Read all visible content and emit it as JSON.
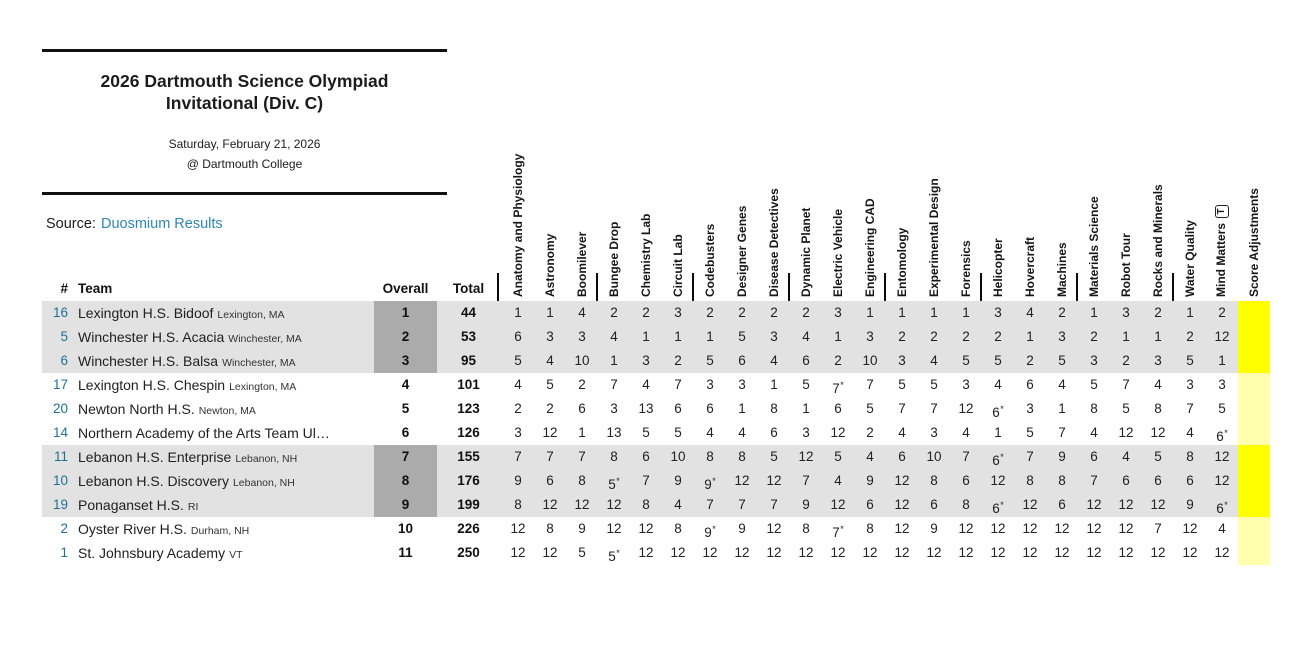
{
  "header": {
    "title_line1": "2026 Dartmouth Science Olympiad",
    "title_line2": "Invitational (Div. C)",
    "date": "Saturday, February 21, 2026",
    "venue": "@ Dartmouth College",
    "source_label": "Source:",
    "source_link": "Duosmium Results"
  },
  "colors": {
    "link_blue": "#2e86b5",
    "team_number_blue": "#1f7095",
    "band_gray": "#e2e2e2",
    "overall_dark_gray": "#ababab",
    "score_adjust_yellow_bright": "#ffff00",
    "score_adjust_yellow_pale": "#ffffad"
  },
  "table": {
    "column_headers": {
      "num": "#",
      "team": "Team",
      "overall": "Overall",
      "total": "Total"
    },
    "events": [
      "Anatomy and Physiology",
      "Astronomy",
      "Boomilever",
      "Bungee Drop",
      "Chemistry Lab",
      "Circuit Lab",
      "Codebusters",
      "Designer Genes",
      "Disease Detectives",
      "Dynamic Planet",
      "Electric Vehicle",
      "Engineering CAD",
      "Entomology",
      "Experimental Design",
      "Forensics",
      "Helicopter",
      "Hovercraft",
      "Machines",
      "Materials Science",
      "Robot Tour",
      "Rocks and Minerals",
      "Water Quality",
      "Mind Matters",
      "Score Adjustments"
    ],
    "trial_event_index": 22,
    "trial_marker": "T",
    "teams": [
      {
        "num": "16",
        "name": "Lexington H.S. Bidoof",
        "location": "Lexington, MA",
        "overall": "1",
        "total": "44",
        "band": "gray",
        "scores": [
          "1",
          "1",
          "4",
          "2",
          "2",
          "3",
          "2",
          "2",
          "2",
          "2",
          "3",
          "1",
          "1",
          "1",
          "1",
          "3",
          "4",
          "2",
          "1",
          "3",
          "2",
          "1",
          "2"
        ]
      },
      {
        "num": "5",
        "name": "Winchester H.S. Acacia",
        "location": "Winchester, MA",
        "overall": "2",
        "total": "53",
        "band": "gray",
        "scores": [
          "6",
          "3",
          "3",
          "4",
          "1",
          "1",
          "1",
          "5",
          "3",
          "4",
          "1",
          "3",
          "2",
          "2",
          "2",
          "2",
          "1",
          "3",
          "2",
          "1",
          "1",
          "2",
          "12"
        ]
      },
      {
        "num": "6",
        "name": "Winchester H.S. Balsa",
        "location": "Winchester, MA",
        "overall": "3",
        "total": "95",
        "band": "gray",
        "scores": [
          "5",
          "4",
          "10",
          "1",
          "3",
          "2",
          "5",
          "6",
          "4",
          "6",
          "2",
          "10",
          "3",
          "4",
          "5",
          "5",
          "2",
          "5",
          "3",
          "2",
          "3",
          "5",
          "1"
        ]
      },
      {
        "num": "17",
        "name": "Lexington H.S. Chespin",
        "location": "Lexington, MA",
        "overall": "4",
        "total": "101",
        "band": "white",
        "scores": [
          "4",
          "5",
          "2",
          "7",
          "4",
          "7",
          "3",
          "3",
          "1",
          "5",
          "7*",
          "7",
          "5",
          "5",
          "3",
          "4",
          "6",
          "4",
          "5",
          "7",
          "4",
          "3",
          "3"
        ]
      },
      {
        "num": "20",
        "name": "Newton North H.S.",
        "location": "Newton, MA",
        "overall": "5",
        "total": "123",
        "band": "white",
        "scores": [
          "2",
          "2",
          "6",
          "3",
          "13",
          "6",
          "6",
          "1",
          "8",
          "1",
          "6",
          "5",
          "7",
          "7",
          "12",
          "6*",
          "3",
          "1",
          "8",
          "5",
          "8",
          "7",
          "5"
        ]
      },
      {
        "num": "14",
        "name": "Northern Academy of the Arts Team Ul…",
        "location": "",
        "overall": "6",
        "total": "126",
        "band": "white",
        "scores": [
          "3",
          "12",
          "1",
          "13",
          "5",
          "5",
          "4",
          "4",
          "6",
          "3",
          "12",
          "2",
          "4",
          "3",
          "4",
          "1",
          "5",
          "7",
          "4",
          "12",
          "12",
          "4",
          "6*"
        ]
      },
      {
        "num": "11",
        "name": "Lebanon H.S. Enterprise",
        "location": "Lebanon, NH",
        "overall": "7",
        "total": "155",
        "band": "gray",
        "scores": [
          "7",
          "7",
          "7",
          "8",
          "6",
          "10",
          "8",
          "8",
          "5",
          "12",
          "5",
          "4",
          "6",
          "10",
          "7",
          "6*",
          "7",
          "9",
          "6",
          "4",
          "5",
          "8",
          "12"
        ]
      },
      {
        "num": "10",
        "name": "Lebanon H.S. Discovery",
        "location": "Lebanon, NH",
        "overall": "8",
        "total": "176",
        "band": "gray",
        "scores": [
          "9",
          "6",
          "8",
          "5*",
          "7",
          "9",
          "9*",
          "12",
          "12",
          "7",
          "4",
          "9",
          "12",
          "8",
          "6",
          "12",
          "8",
          "8",
          "7",
          "6",
          "6",
          "6",
          "12"
        ]
      },
      {
        "num": "19",
        "name": "Ponaganset H.S.",
        "location": "RI",
        "overall": "9",
        "total": "199",
        "band": "gray",
        "scores": [
          "8",
          "12",
          "12",
          "12",
          "8",
          "4",
          "7",
          "7",
          "7",
          "9",
          "12",
          "6",
          "12",
          "6",
          "8",
          "6*",
          "12",
          "6",
          "12",
          "12",
          "12",
          "9",
          "6*"
        ]
      },
      {
        "num": "2",
        "name": "Oyster River H.S.",
        "location": "Durham, NH",
        "overall": "10",
        "total": "226",
        "band": "white",
        "scores": [
          "12",
          "8",
          "9",
          "12",
          "12",
          "8",
          "9*",
          "9",
          "12",
          "8",
          "7*",
          "8",
          "12",
          "9",
          "12",
          "12",
          "12",
          "12",
          "12",
          "12",
          "7",
          "12",
          "4"
        ]
      },
      {
        "num": "1",
        "name": "St. Johnsbury Academy",
        "location": "VT",
        "overall": "11",
        "total": "250",
        "band": "white",
        "scores": [
          "12",
          "12",
          "5",
          "5*",
          "12",
          "12",
          "12",
          "12",
          "12",
          "12",
          "12",
          "12",
          "12",
          "12",
          "12",
          "12",
          "12",
          "12",
          "12",
          "12",
          "12",
          "12",
          "12"
        ]
      }
    ]
  }
}
